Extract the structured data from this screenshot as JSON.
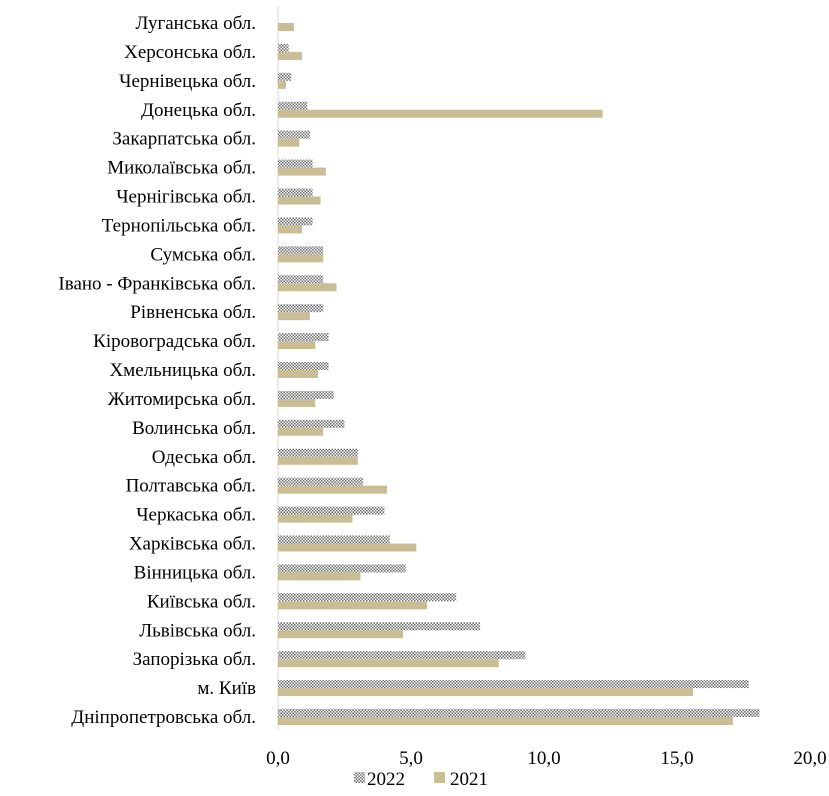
{
  "chart_data": {
    "type": "bar",
    "orientation": "horizontal",
    "categories": [
      "Луганська обл.",
      "Херсонська обл.",
      "Чернівецька обл.",
      "Донецька обл.",
      "Закарпатська обл.",
      "Миколаївська обл.",
      "Чернігівська обл.",
      "Тернопільська обл.",
      "Сумська обл.",
      "Івано - Франківська обл.",
      "Рівненська обл.",
      "Кіровоградська обл.",
      "Хмельницька обл.",
      "Житомирська обл.",
      "Волинська обл.",
      "Одеська обл.",
      "Полтавська обл.",
      "Черкаська обл.",
      "Харківська обл.",
      "Вінницька обл.",
      "Київська обл.",
      "Львівська обл.",
      "Запорізька обл.",
      "м. Київ",
      "Дніпропетровська обл."
    ],
    "series": [
      {
        "name": "2022",
        "pattern": "checker",
        "color": "#7f7f7f",
        "values": [
          0.0,
          0.4,
          0.5,
          1.1,
          1.2,
          1.3,
          1.3,
          1.3,
          1.7,
          1.7,
          1.7,
          1.9,
          1.9,
          2.1,
          2.5,
          3.0,
          3.2,
          4.0,
          4.2,
          4.8,
          6.7,
          7.6,
          9.3,
          17.7,
          18.1
        ]
      },
      {
        "name": "2021",
        "color": "#c8bd95",
        "values": [
          0.6,
          0.9,
          0.3,
          12.2,
          0.8,
          1.8,
          1.6,
          0.9,
          1.7,
          2.2,
          1.2,
          1.4,
          1.5,
          1.4,
          1.7,
          3.0,
          4.1,
          2.8,
          5.2,
          3.1,
          5.6,
          4.7,
          8.3,
          15.6,
          17.1
        ]
      }
    ],
    "xlim": [
      0,
      20
    ],
    "xticks": [
      0,
      5,
      10,
      15,
      20
    ],
    "xtick_labels": [
      "0,0",
      "5,0",
      "10,0",
      "15,0",
      "20,0"
    ],
    "title": "",
    "xlabel": "",
    "ylabel": "",
    "grid": false,
    "legend_position": "bottom"
  }
}
